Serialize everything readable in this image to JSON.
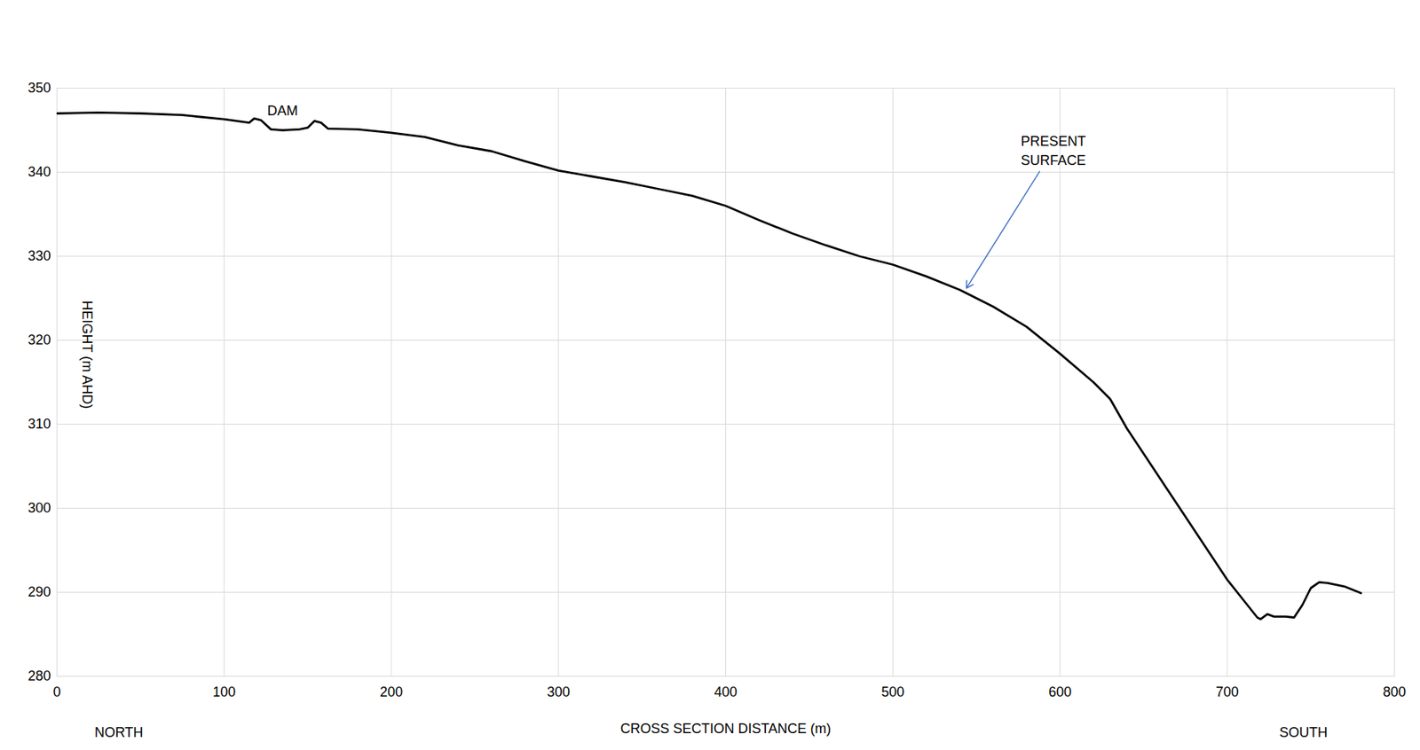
{
  "chart_data": {
    "type": "line",
    "x_label": "CROSS SECTION DISTANCE (m)",
    "y_label": "HEIGHT (m AHD)",
    "direction_labels": {
      "left": "NORTH",
      "right": "SOUTH"
    },
    "color": "#000000",
    "x": [
      0,
      25,
      50,
      75,
      100,
      115,
      118,
      122,
      128,
      135,
      145,
      150,
      154,
      158,
      162,
      180,
      200,
      220,
      240,
      260,
      280,
      300,
      320,
      340,
      360,
      380,
      400,
      420,
      440,
      460,
      480,
      500,
      520,
      540,
      560,
      580,
      600,
      620,
      630,
      640,
      650,
      660,
      670,
      680,
      690,
      700,
      710,
      718,
      720,
      724,
      728,
      735,
      740,
      745,
      750,
      755,
      760,
      770,
      780
    ],
    "values": [
      347,
      347.1,
      347,
      346.8,
      346.3,
      345.9,
      346.4,
      346.2,
      345.1,
      345,
      345.1,
      345.3,
      346.1,
      345.9,
      345.2,
      345.1,
      344.7,
      344.2,
      343.2,
      342.5,
      341.3,
      340.2,
      339.5,
      338.8,
      338,
      337.2,
      336,
      334.3,
      332.7,
      331.3,
      330,
      329,
      327.6,
      326,
      324,
      321.6,
      318.4,
      315,
      313,
      309.5,
      306.5,
      303.5,
      300.5,
      297.5,
      294.5,
      291.5,
      289,
      287,
      286.8,
      287.4,
      287.1,
      287.1,
      287,
      288.5,
      290.5,
      291.2,
      291.1,
      290.7,
      289.9
    ],
    "annotations": [
      {
        "text": "DAM",
        "x": 135,
        "y": 347.5
      },
      {
        "text": "PRESENT SURFACE",
        "x": 596,
        "y": 342.7,
        "arrow_to": [
          544,
          326.2
        ],
        "color": "#4472c4"
      }
    ],
    "xlim": [
      0,
      800
    ],
    "ylim": [
      280,
      350
    ],
    "xticks": [
      0,
      100,
      200,
      300,
      400,
      500,
      600,
      700,
      800
    ],
    "yticks": [
      280,
      290,
      300,
      310,
      320,
      330,
      340,
      350
    ],
    "grid": true
  }
}
